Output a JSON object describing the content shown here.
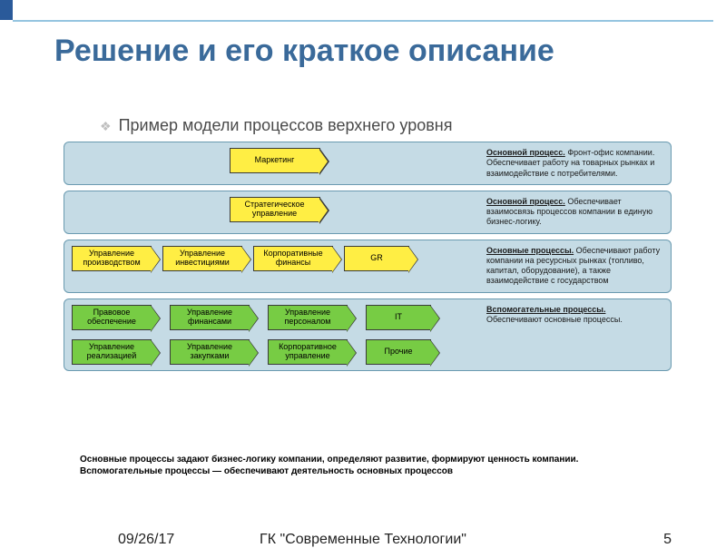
{
  "slide": {
    "title": "Решение и его краткое описание",
    "subtitle": "Пример модели процессов верхнего уровня",
    "caption": "Основные процессы задают бизнес-логику компании, определяют развитие, формируют ценность компании. Вспомогательные процессы — обеспечивают деятельность основных процессов"
  },
  "footer": {
    "date": "09/26/17",
    "org": "ГК \"Современные Технологии\"",
    "page": "5"
  },
  "colors": {
    "main_process": "#ffee44",
    "support_process": "#77cc44",
    "panel_bg": "#c5dbe5",
    "panel_border": "#6a9ab0",
    "title_color": "#3a6a9a",
    "accent_bar": "#2a5a9a"
  },
  "panels": [
    {
      "layout": "center-single",
      "shapes": [
        {
          "label": "Маркетинг",
          "kind": "main",
          "width": "w1"
        }
      ],
      "desc_head": "Основной процесс.",
      "desc_body": " Фронт-офис компании. Обеспечивает работу на товарных рынках и взаимодействие с потребителями."
    },
    {
      "layout": "center-single",
      "shapes": [
        {
          "label": "Стратегическое управление",
          "kind": "main",
          "width": "w1"
        }
      ],
      "desc_head": "Основной процесс.",
      "desc_body": " Обеспечивает взаимосвязь процессов компании в единую бизнес-логику."
    },
    {
      "layout": "row",
      "shapes": [
        {
          "label": "Управление производством",
          "kind": "main",
          "width": "w2"
        },
        {
          "label": "Управление инвестициями",
          "kind": "main",
          "width": "w2"
        },
        {
          "label": "Корпоративные финансы",
          "kind": "main",
          "width": "w2"
        },
        {
          "label": "GR",
          "kind": "main",
          "width": "w3"
        }
      ],
      "desc_head": "Основные процессы.",
      "desc_body": " Обеспечивают работу компании на ресурсных рынках (топливо, капитал, оборудование), а также взаимодействие с государством"
    },
    {
      "layout": "rows2",
      "rows": [
        [
          {
            "label": "Правовое обеспечение",
            "kind": "support",
            "width": "w2"
          },
          {
            "label": "Управление финансами",
            "kind": "support",
            "width": "w2"
          },
          {
            "label": "Управление персоналом",
            "kind": "support",
            "width": "w2"
          },
          {
            "label": "IT",
            "kind": "support",
            "width": "w3"
          }
        ],
        [
          {
            "label": "Управление реализацией",
            "kind": "support",
            "width": "w2"
          },
          {
            "label": "Управление закупками",
            "kind": "support",
            "width": "w2"
          },
          {
            "label": "Корпоративное управление",
            "kind": "support",
            "width": "w2"
          },
          {
            "label": "Прочие",
            "kind": "support",
            "width": "w3"
          }
        ]
      ],
      "desc_head": "Вспомогательные процессы.",
      "desc_body": " Обеспечивают основные процессы."
    }
  ]
}
